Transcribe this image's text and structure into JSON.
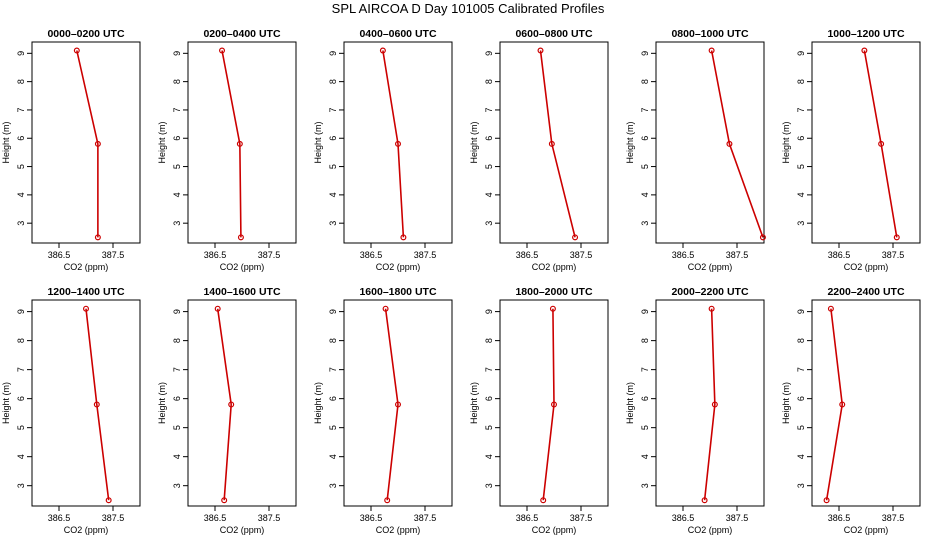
{
  "title": "SPL AIRCOA D  Day 101005  Calibrated Profiles",
  "chart_data": [
    {
      "type": "line",
      "title": "0000–0200 UTC",
      "xlabel": "CO2 (ppm)",
      "ylabel": "Height (m)",
      "xlim": [
        386.0,
        388.0
      ],
      "ylim": [
        2.3,
        9.4
      ],
      "xticks": [
        "386.5",
        "387.5"
      ],
      "yticks": [
        "3",
        "4",
        "5",
        "6",
        "7",
        "8",
        "9"
      ],
      "grid": false,
      "series": [
        {
          "color": "#cc0000",
          "points": [
            {
              "x": 386.83,
              "y": 9.1
            },
            {
              "x": 387.22,
              "y": 5.8
            },
            {
              "x": 387.22,
              "y": 2.5
            }
          ]
        }
      ]
    },
    {
      "type": "line",
      "title": "0200–0400 UTC",
      "xlabel": "CO2 (ppm)",
      "ylabel": "Height (m)",
      "xlim": [
        386.0,
        388.0
      ],
      "ylim": [
        2.3,
        9.4
      ],
      "xticks": [
        "386.5",
        "387.5"
      ],
      "yticks": [
        "3",
        "4",
        "5",
        "6",
        "7",
        "8",
        "9"
      ],
      "grid": false,
      "series": [
        {
          "color": "#cc0000",
          "points": [
            {
              "x": 386.63,
              "y": 9.1
            },
            {
              "x": 386.96,
              "y": 5.8
            },
            {
              "x": 386.98,
              "y": 2.5
            }
          ]
        }
      ]
    },
    {
      "type": "line",
      "title": "0400–0600 UTC",
      "xlabel": "CO2 (ppm)",
      "ylabel": "Height (m)",
      "xlim": [
        386.0,
        388.0
      ],
      "ylim": [
        2.3,
        9.4
      ],
      "xticks": [
        "386.5",
        "387.5"
      ],
      "yticks": [
        "3",
        "4",
        "5",
        "6",
        "7",
        "8",
        "9"
      ],
      "grid": false,
      "series": [
        {
          "color": "#cc0000",
          "points": [
            {
              "x": 386.72,
              "y": 9.1
            },
            {
              "x": 387.0,
              "y": 5.8
            },
            {
              "x": 387.1,
              "y": 2.5
            }
          ]
        }
      ]
    },
    {
      "type": "line",
      "title": "0600–0800 UTC",
      "xlabel": "CO2 (ppm)",
      "ylabel": "Height (m)",
      "xlim": [
        386.0,
        388.0
      ],
      "ylim": [
        2.3,
        9.4
      ],
      "xticks": [
        "386.5",
        "387.5"
      ],
      "yticks": [
        "3",
        "4",
        "5",
        "6",
        "7",
        "8",
        "9"
      ],
      "grid": false,
      "series": [
        {
          "color": "#cc0000",
          "points": [
            {
              "x": 386.75,
              "y": 9.1
            },
            {
              "x": 386.96,
              "y": 5.8
            },
            {
              "x": 387.39,
              "y": 2.5
            }
          ]
        }
      ]
    },
    {
      "type": "line",
      "title": "0800–1000 UTC",
      "xlabel": "CO2 (ppm)",
      "ylabel": "Height (m)",
      "xlim": [
        386.0,
        388.0
      ],
      "ylim": [
        2.3,
        9.4
      ],
      "xticks": [
        "386.5",
        "387.5"
      ],
      "yticks": [
        "3",
        "4",
        "5",
        "6",
        "7",
        "8",
        "9"
      ],
      "grid": false,
      "series": [
        {
          "color": "#cc0000",
          "points": [
            {
              "x": 387.03,
              "y": 9.1
            },
            {
              "x": 387.36,
              "y": 5.8
            },
            {
              "x": 387.98,
              "y": 2.5
            }
          ]
        }
      ]
    },
    {
      "type": "line",
      "title": "1000–1200 UTC",
      "xlabel": "CO2 (ppm)",
      "ylabel": "Height (m)",
      "xlim": [
        386.0,
        388.0
      ],
      "ylim": [
        2.3,
        9.4
      ],
      "xticks": [
        "386.5",
        "387.5"
      ],
      "yticks": [
        "3",
        "4",
        "5",
        "6",
        "7",
        "8",
        "9"
      ],
      "grid": false,
      "series": [
        {
          "color": "#cc0000",
          "points": [
            {
              "x": 386.97,
              "y": 9.1
            },
            {
              "x": 387.28,
              "y": 5.8
            },
            {
              "x": 387.57,
              "y": 2.5
            }
          ]
        }
      ]
    },
    {
      "type": "line",
      "title": "1200–1400 UTC",
      "xlabel": "CO2 (ppm)",
      "ylabel": "Height (m)",
      "xlim": [
        386.0,
        388.0
      ],
      "ylim": [
        2.3,
        9.4
      ],
      "xticks": [
        "386.5",
        "387.5"
      ],
      "yticks": [
        "3",
        "4",
        "5",
        "6",
        "7",
        "8",
        "9"
      ],
      "grid": false,
      "series": [
        {
          "color": "#cc0000",
          "points": [
            {
              "x": 387.0,
              "y": 9.1
            },
            {
              "x": 387.2,
              "y": 5.8
            },
            {
              "x": 387.42,
              "y": 2.5
            }
          ]
        }
      ]
    },
    {
      "type": "line",
      "title": "1400–1600 UTC",
      "xlabel": "CO2 (ppm)",
      "ylabel": "Height (m)",
      "xlim": [
        386.0,
        388.0
      ],
      "ylim": [
        2.3,
        9.4
      ],
      "xticks": [
        "386.5",
        "387.5"
      ],
      "yticks": [
        "3",
        "4",
        "5",
        "6",
        "7",
        "8",
        "9"
      ],
      "grid": false,
      "series": [
        {
          "color": "#cc0000",
          "points": [
            {
              "x": 386.55,
              "y": 9.1
            },
            {
              "x": 386.8,
              "y": 5.8
            },
            {
              "x": 386.67,
              "y": 2.5
            }
          ]
        }
      ]
    },
    {
      "type": "line",
      "title": "1600–1800 UTC",
      "xlabel": "CO2 (ppm)",
      "ylabel": "Height (m)",
      "xlim": [
        386.0,
        388.0
      ],
      "ylim": [
        2.3,
        9.4
      ],
      "xticks": [
        "386.5",
        "387.5"
      ],
      "yticks": [
        "3",
        "4",
        "5",
        "6",
        "7",
        "8",
        "9"
      ],
      "grid": false,
      "series": [
        {
          "color": "#cc0000",
          "points": [
            {
              "x": 386.77,
              "y": 9.1
            },
            {
              "x": 387.0,
              "y": 5.8
            },
            {
              "x": 386.8,
              "y": 2.5
            }
          ]
        }
      ]
    },
    {
      "type": "line",
      "title": "1800–2000 UTC",
      "xlabel": "CO2 (ppm)",
      "ylabel": "Height (m)",
      "xlim": [
        386.0,
        388.0
      ],
      "ylim": [
        2.3,
        9.4
      ],
      "xticks": [
        "386.5",
        "387.5"
      ],
      "yticks": [
        "3",
        "4",
        "5",
        "6",
        "7",
        "8",
        "9"
      ],
      "grid": false,
      "series": [
        {
          "color": "#cc0000",
          "points": [
            {
              "x": 386.98,
              "y": 9.1
            },
            {
              "x": 387.0,
              "y": 5.8
            },
            {
              "x": 386.8,
              "y": 2.5
            }
          ]
        }
      ]
    },
    {
      "type": "line",
      "title": "2000–2200 UTC",
      "xlabel": "CO2 (ppm)",
      "ylabel": "Height (m)",
      "xlim": [
        386.0,
        388.0
      ],
      "ylim": [
        2.3,
        9.4
      ],
      "xticks": [
        "386.5",
        "387.5"
      ],
      "yticks": [
        "3",
        "4",
        "5",
        "6",
        "7",
        "8",
        "9"
      ],
      "grid": false,
      "series": [
        {
          "color": "#cc0000",
          "points": [
            {
              "x": 387.03,
              "y": 9.1
            },
            {
              "x": 387.09,
              "y": 5.8
            },
            {
              "x": 386.9,
              "y": 2.5
            }
          ]
        }
      ]
    },
    {
      "type": "line",
      "title": "2200–2400 UTC",
      "xlabel": "CO2 (ppm)",
      "ylabel": "Height (m)",
      "xlim": [
        386.0,
        388.0
      ],
      "ylim": [
        2.3,
        9.4
      ],
      "xticks": [
        "386.5",
        "387.5"
      ],
      "yticks": [
        "3",
        "4",
        "5",
        "6",
        "7",
        "8",
        "9"
      ],
      "grid": false,
      "series": [
        {
          "color": "#cc0000",
          "points": [
            {
              "x": 386.35,
              "y": 9.1
            },
            {
              "x": 386.56,
              "y": 5.8
            },
            {
              "x": 386.27,
              "y": 2.5
            }
          ]
        }
      ]
    }
  ]
}
